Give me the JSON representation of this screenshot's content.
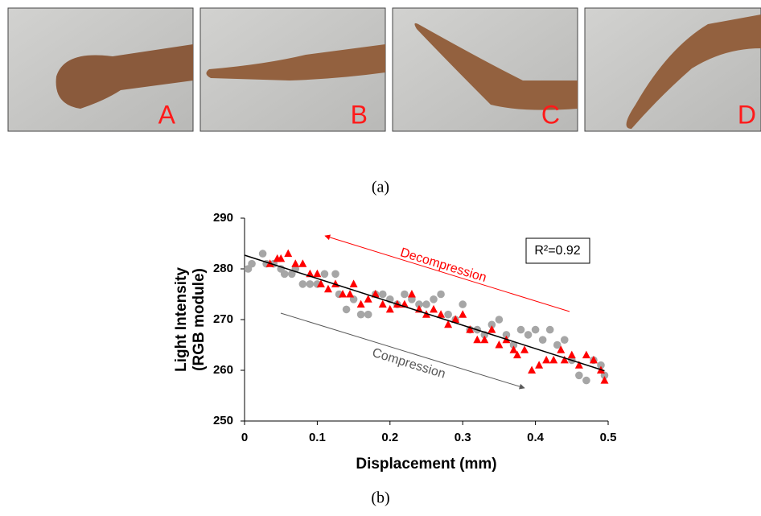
{
  "figure": {
    "panels": [
      {
        "label": "A"
      },
      {
        "label": "B"
      },
      {
        "label": "C"
      },
      {
        "label": "D"
      }
    ],
    "caption_a": "(a)",
    "caption_b": "(b)"
  },
  "chart_data": {
    "type": "scatter",
    "xlabel": "Displacement (mm)",
    "ylabel": [
      "Light Intensity",
      "(RGB module)"
    ],
    "xlim": [
      0,
      0.5
    ],
    "ylim": [
      250,
      290
    ],
    "xticks": [
      0,
      0.1,
      0.2,
      0.3,
      0.4,
      0.5
    ],
    "yticks": [
      250,
      260,
      270,
      280,
      290
    ],
    "grid": false,
    "series": [
      {
        "color": "#a6a6a6",
        "marker": "circle",
        "x": [
          0.005,
          0.01,
          0.025,
          0.03,
          0.04,
          0.05,
          0.055,
          0.065,
          0.07,
          0.08,
          0.09,
          0.1,
          0.11,
          0.125,
          0.13,
          0.14,
          0.15,
          0.16,
          0.17,
          0.18,
          0.19,
          0.2,
          0.21,
          0.22,
          0.23,
          0.24,
          0.25,
          0.26,
          0.27,
          0.28,
          0.29,
          0.3,
          0.31,
          0.32,
          0.33,
          0.34,
          0.35,
          0.36,
          0.37,
          0.38,
          0.39,
          0.4,
          0.41,
          0.42,
          0.43,
          0.44,
          0.45,
          0.46,
          0.47,
          0.48,
          0.49,
          0.495
        ],
        "values": [
          280,
          281,
          283,
          281,
          281,
          280,
          279,
          279,
          280,
          277,
          277,
          277,
          279,
          279,
          275,
          272,
          274,
          271,
          271,
          275,
          275,
          274,
          273,
          275,
          274,
          273,
          273,
          274,
          275,
          271,
          270,
          273,
          268,
          268,
          267,
          269,
          270,
          267,
          265,
          268,
          267,
          268,
          266,
          268,
          265,
          266,
          262,
          259,
          258,
          262,
          261,
          259
        ]
      },
      {
        "color": "#ff0000",
        "marker": "triangle",
        "x": [
          0.035,
          0.045,
          0.05,
          0.06,
          0.07,
          0.08,
          0.09,
          0.1,
          0.105,
          0.115,
          0.125,
          0.135,
          0.145,
          0.15,
          0.16,
          0.17,
          0.18,
          0.19,
          0.2,
          0.21,
          0.22,
          0.23,
          0.24,
          0.25,
          0.26,
          0.27,
          0.28,
          0.29,
          0.3,
          0.31,
          0.32,
          0.33,
          0.34,
          0.35,
          0.36,
          0.37,
          0.375,
          0.385,
          0.395,
          0.405,
          0.415,
          0.425,
          0.435,
          0.44,
          0.45,
          0.46,
          0.47,
          0.48,
          0.49,
          0.495
        ],
        "values": [
          281,
          282,
          282,
          283,
          281,
          281,
          279,
          279,
          277,
          276,
          277,
          275,
          275,
          277,
          273,
          274,
          275,
          273,
          272,
          273,
          273,
          275,
          272,
          271,
          272,
          271,
          269,
          270,
          271,
          268,
          266,
          266,
          268,
          265,
          266,
          264,
          263,
          264,
          260,
          261,
          262,
          262,
          264,
          262,
          263,
          261,
          263,
          262,
          260,
          258
        ]
      }
    ],
    "trendline": {
      "x": [
        0,
        0.495
      ],
      "values": [
        282.7,
        259.9
      ],
      "color": "#000000"
    },
    "annotations": {
      "r2": "R²=0.92",
      "decompression": "Decompression",
      "compression": "Compression"
    }
  }
}
